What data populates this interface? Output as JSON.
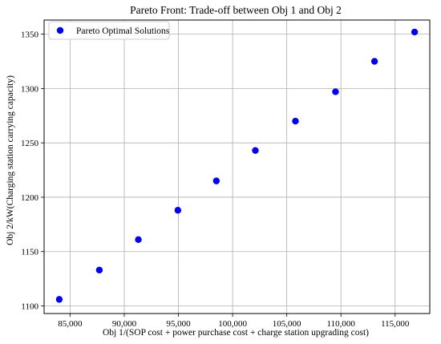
{
  "chart_data": {
    "type": "scatter",
    "title": "Pareto Front: Trade-off between Obj 1 and Obj 2",
    "xlabel": "Obj 1/(SOP cost + power purchase cost + charge station upgrading cost)",
    "ylabel": "Obj 2/kW(Charging station carrying capacity)",
    "xlim": [
      82600,
      118200
    ],
    "ylim": [
      1093,
      1363
    ],
    "x_ticks": [
      85000,
      90000,
      95000,
      100000,
      105000,
      110000,
      115000
    ],
    "x_tick_labels": [
      "85,000",
      "90,000",
      "95,000",
      "100,000",
      "105,000",
      "110,000",
      "115,000"
    ],
    "y_ticks": [
      1100,
      1150,
      1200,
      1250,
      1300,
      1350
    ],
    "y_tick_labels": [
      "1100",
      "1150",
      "1200",
      "1250",
      "1300",
      "1350"
    ],
    "grid": true,
    "legend_position": "top-left",
    "series": [
      {
        "name": "Pareto Optimal Solutions",
        "color": "#0000ee",
        "x": [
          84000,
          87700,
          91300,
          94950,
          98500,
          102100,
          105800,
          109500,
          113100,
          116800
        ],
        "y": [
          1106,
          1133,
          1161,
          1188,
          1215,
          1243,
          1270,
          1297,
          1325,
          1352
        ]
      }
    ]
  }
}
